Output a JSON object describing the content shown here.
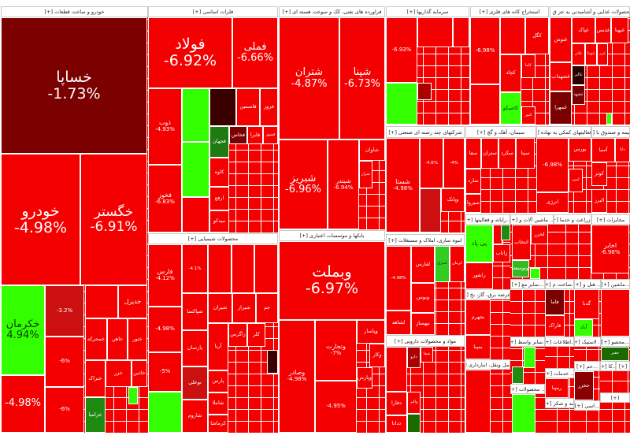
{
  "colors": {
    "red": "#f40000",
    "dark_red": "#cc1010",
    "maroon": "#7b0000",
    "very_dark": "#3a0000",
    "green": "#33ff00",
    "dark_green": "#1f8a10",
    "deep_green": "#1a6a00"
  },
  "sectors": [
    {
      "title": "خودرو و ساخت قطعات [+]",
      "tiles": [
        {
          "label": "خساپا",
          "pct": "-1.73%",
          "color": "#7b0000"
        },
        {
          "label": "خودرو",
          "pct": "-4.98%",
          "color": "#f40000"
        },
        {
          "label": "خگستر",
          "pct": "-6.91%",
          "color": "#f40000"
        },
        {
          "label": "خکرمان",
          "pct": "4.94%",
          "color": "#33ff00"
        },
        {
          "label": "",
          "pct": "-3.2%",
          "color": "#cc1010"
        },
        {
          "label": "",
          "pct": "-6%",
          "color": "#f40000"
        },
        {
          "label": "",
          "pct": "-4.98%",
          "color": "#f40000"
        },
        {
          "label": "",
          "pct": "-6%",
          "color": "#f40000"
        },
        {
          "label": "خدیزل",
          "pct": "",
          "color": "#f40000"
        },
        {
          "label": "",
          "pct": "",
          "color": "#f40000"
        },
        {
          "label": "خمحرکه",
          "pct": "",
          "color": "#f40000"
        },
        {
          "label": "خاهن",
          "pct": "",
          "color": "#f40000"
        },
        {
          "label": "ختور",
          "pct": "",
          "color": "#f40000"
        },
        {
          "label": "ختراک",
          "pct": "",
          "color": "#f40000"
        },
        {
          "label": "خزر",
          "pct": "",
          "color": "#f40000"
        },
        {
          "label": "خاذین",
          "pct": "",
          "color": "#f40000"
        },
        {
          "label": "خزامیا",
          "pct": "",
          "color": "#1f8a10"
        },
        {
          "label": "",
          "pct": "",
          "color": "#33ff00"
        }
      ]
    },
    {
      "title": "فلزات اساسی [+]",
      "tiles": [
        {
          "label": "فولاد",
          "pct": "-6.92%",
          "color": "#f40000"
        },
        {
          "label": "فملی",
          "pct": "-6.66%",
          "color": "#f40000"
        },
        {
          "label": "ذوب",
          "pct": "-4.93%",
          "color": "#f40000"
        },
        {
          "label": "فخوز",
          "pct": "-6.83%",
          "color": "#f40000"
        },
        {
          "label": "",
          "pct": "",
          "color": "#33ff00"
        },
        {
          "label": "",
          "pct": "",
          "color": "#33ff00"
        },
        {
          "label": "",
          "pct": "",
          "color": "#f40000"
        },
        {
          "label": "",
          "pct": "",
          "color": "#3a0000"
        },
        {
          "label": "قاسمین",
          "pct": "",
          "color": "#f40000"
        },
        {
          "label": "فروز",
          "pct": "",
          "color": "#f40000"
        },
        {
          "label": "فجهان",
          "pct": "",
          "color": "#1f7a12"
        },
        {
          "label": "فخاس",
          "pct": "",
          "color": "#7b0000"
        },
        {
          "label": "فایرا",
          "pct": "",
          "color": "#f40000"
        },
        {
          "label": "فسوز",
          "pct": "",
          "color": "#f40000"
        },
        {
          "label": "کاوه",
          "pct": "",
          "color": "#f40000"
        },
        {
          "label": "ارفع",
          "pct": "",
          "color": "#f40000"
        },
        {
          "label": "میدکو",
          "pct": "",
          "color": "#f40000"
        }
      ]
    },
    {
      "title": "محصولات شیمیایی [+]",
      "tiles": [
        {
          "label": "فارس",
          "pct": "-4.12%",
          "color": "#f40000"
        },
        {
          "label": "",
          "pct": "-4.98%",
          "color": "#f40000"
        },
        {
          "label": "",
          "pct": "-5%",
          "color": "#f40000"
        },
        {
          "label": "",
          "pct": "",
          "color": "#33ff00"
        },
        {
          "label": "",
          "pct": "-4.1%",
          "color": "#f40000"
        },
        {
          "label": "",
          "pct": "",
          "color": "#f40000"
        },
        {
          "label": "",
          "pct": "",
          "color": "#f40000"
        },
        {
          "label": "",
          "pct": "",
          "color": "#f40000"
        },
        {
          "label": "شپاکسا",
          "pct": "",
          "color": "#f40000"
        },
        {
          "label": "شیران",
          "pct": "",
          "color": "#f40000"
        },
        {
          "label": "شیراز",
          "pct": "",
          "color": "#f40000"
        },
        {
          "label": "جم",
          "pct": "",
          "color": "#f40000"
        },
        {
          "label": "پارسان",
          "pct": "",
          "color": "#f40000"
        },
        {
          "label": "نوعلی",
          "pct": "",
          "color": "#cc1010"
        },
        {
          "label": "شاروم",
          "pct": "",
          "color": "#f40000"
        },
        {
          "label": "آریا",
          "pct": "",
          "color": "#f40000"
        },
        {
          "label": "زاگرس",
          "pct": "",
          "color": "#f40000"
        },
        {
          "label": "کلر",
          "pct": "",
          "color": "#f40000"
        },
        {
          "label": "",
          "pct": "",
          "color": "#3a0000"
        },
        {
          "label": "پارس",
          "pct": "",
          "color": "#f40000"
        },
        {
          "label": "شاملا",
          "pct": "",
          "color": "#f40000"
        },
        {
          "label": "کرماشا",
          "pct": "",
          "color": "#f40000"
        }
      ]
    },
    {
      "title": "فراورده های نفتی، کک و سوخت هسته ای [+]",
      "tiles": [
        {
          "label": "شتران",
          "pct": "-4.87%",
          "color": "#f40000"
        },
        {
          "label": "شپنا",
          "pct": "-6.73%",
          "color": "#f40000"
        },
        {
          "label": "شبریز",
          "pct": "-6.96%",
          "color": "#f40000"
        },
        {
          "label": "شبندر",
          "pct": "-6.94%",
          "color": "#f40000"
        },
        {
          "label": "شاوان",
          "pct": "",
          "color": "#f40000"
        },
        {
          "label": "شراز",
          "pct": "",
          "color": "#f40000"
        }
      ]
    },
    {
      "title": "بانکها و موسسات اعتباری [+]",
      "tiles": [
        {
          "label": "وبملت",
          "pct": "-6.97%",
          "color": "#f40000"
        },
        {
          "label": "وصادر",
          "pct": "-4.98%",
          "color": "#f40000"
        },
        {
          "label": "وتجارت",
          "pct": "-7%",
          "color": "#f40000"
        },
        {
          "label": "",
          "pct": "-4.95%",
          "color": "#f40000"
        },
        {
          "label": "وپاسار",
          "pct": "",
          "color": "#f40000"
        },
        {
          "label": "وکار",
          "pct": "",
          "color": "#f40000"
        },
        {
          "label": "وپارس",
          "pct": "",
          "color": "#f40000"
        }
      ]
    },
    {
      "title": "سرمایه گذاریها [+]",
      "tiles": [
        {
          "label": "",
          "pct": "-6.93%",
          "color": "#f40000"
        },
        {
          "label": "",
          "pct": "",
          "color": "#33ff00"
        },
        {
          "label": "",
          "pct": "",
          "color": "#f40000"
        },
        {
          "label": "",
          "pct": "",
          "color": "#f40000"
        },
        {
          "label": "",
          "pct": "",
          "color": "#aa0000"
        }
      ]
    },
    {
      "title": "استخراج کانه های فلزی [+]",
      "tiles": [
        {
          "label": "",
          "pct": "-6.98%",
          "color": "#f40000"
        },
        {
          "label": "",
          "pct": "",
          "color": "#f40000"
        },
        {
          "label": "",
          "pct": "",
          "color": "#f40000"
        },
        {
          "label": "کگل",
          "pct": "",
          "color": "#f40000"
        },
        {
          "label": "کچاد",
          "pct": "",
          "color": "#f40000"
        },
        {
          "label": "کاما",
          "pct": "",
          "color": "#f40000"
        },
        {
          "label": "کاصیکو",
          "pct": "",
          "color": "#33ff00"
        },
        {
          "label": "کنور",
          "pct": "",
          "color": "#f40000"
        }
      ]
    },
    {
      "title": "...محصولات غذایی و آشامیدنی به جز ق [+]",
      "tiles": [
        {
          "label": "غنوش",
          "pct": "",
          "color": "#f40000"
        },
        {
          "label": "غپاک",
          "pct": "",
          "color": "#f40000"
        },
        {
          "label": "غدیس",
          "pct": "",
          "color": "#f40000"
        },
        {
          "label": "غبهنا",
          "pct": "",
          "color": "#f40000"
        },
        {
          "label": "غاذر",
          "pct": "",
          "color": "#f40000"
        },
        {
          "label": "غویتا",
          "pct": "",
          "color": "#f40000"
        },
        {
          "label": "غزر",
          "pct": "",
          "color": "#f40000"
        },
        {
          "label": "غشهداب",
          "pct": "",
          "color": "#f40000"
        },
        {
          "label": "غمهرا",
          "pct": "",
          "color": "#7b0000"
        },
        {
          "label": "غالبر",
          "pct": "",
          "color": "#2a0000"
        },
        {
          "label": "غشهد",
          "pct": "",
          "color": "#7b0000"
        },
        {
          "label": "",
          "pct": "",
          "color": "#33ff00"
        }
      ]
    },
    {
      "title": "شرکتهای چند رشته ای صنعتی [+]",
      "tiles": [
        {
          "label": "شستا",
          "pct": "-4.98%",
          "color": "#f40000"
        },
        {
          "label": "",
          "pct": "-4.6%",
          "color": "#f40000"
        },
        {
          "label": "",
          "pct": "-4%",
          "color": "#f40000"
        },
        {
          "label": "",
          "pct": "",
          "color": "#cc1010"
        },
        {
          "label": "وپانک",
          "pct": "",
          "color": "#f40000"
        }
      ]
    },
    {
      "title": "سیمان، آهک و گچ [+]",
      "tiles": [
        {
          "label": "سفا",
          "pct": "",
          "color": "#f40000"
        },
        {
          "label": "ستران",
          "pct": "",
          "color": "#f40000"
        },
        {
          "label": "سکرد",
          "pct": "",
          "color": "#f40000"
        },
        {
          "label": "سپتا",
          "pct": "",
          "color": "#f40000"
        },
        {
          "label": "سارد",
          "pct": "",
          "color": "#f40000"
        },
        {
          "label": "سیروا",
          "pct": "",
          "color": "#f40000"
        }
      ]
    },
    {
      "title": "...فعالیتهای کمکی به نهاده [+]",
      "tiles": [
        {
          "label": "",
          "pct": "-6.98%",
          "color": "#f40000"
        },
        {
          "label": "بورس",
          "pct": "",
          "color": "#f40000"
        },
        {
          "label": "امین",
          "pct": "",
          "color": "#f40000"
        },
        {
          "label": "انرژی",
          "pct": "",
          "color": "#f40000"
        }
      ]
    },
    {
      "title": "...بیمه و صندوق با [+]",
      "tiles": [
        {
          "label": "آسیا",
          "pct": "",
          "color": "#f40000"
        },
        {
          "label": "دانا",
          "pct": "",
          "color": "#f40000"
        },
        {
          "label": "کوثر",
          "pct": "",
          "color": "#f40000"
        },
        {
          "label": "البرز",
          "pct": "",
          "color": "#f40000"
        }
      ]
    },
    {
      "title": "انبوه سازی، املاک و مستغلات [+]",
      "tiles": [
        {
          "label": "",
          "pct": "-4.98%",
          "color": "#f40000"
        },
        {
          "label": "لفارس",
          "pct": "",
          "color": "#f40000"
        },
        {
          "label": "لشرق",
          "pct": "",
          "color": "#33cc22"
        },
        {
          "label": "کرمان",
          "pct": "",
          "color": "#f40000"
        },
        {
          "label": "ونوس",
          "pct": "",
          "color": "#f40000"
        },
        {
          "label": "نیهساز",
          "pct": "",
          "color": "#f40000"
        },
        {
          "label": "لشاهد",
          "pct": "",
          "color": "#f40000"
        }
      ]
    },
    {
      "title": "مواد و محصولات دارویی [+]",
      "tiles": [
        {
          "label": "",
          "pct": "",
          "color": "#f40000"
        },
        {
          "label": "دارو",
          "pct": "",
          "color": "#aa0000"
        },
        {
          "label": "شفا",
          "pct": "",
          "color": "#f40000"
        },
        {
          "label": "والبر",
          "pct": "",
          "color": "#f40000"
        },
        {
          "label": "",
          "pct": "",
          "color": "#1a6a00"
        },
        {
          "label": "دفارا",
          "pct": "",
          "color": "#f40000"
        },
        {
          "label": "ددانا",
          "pct": "",
          "color": "#f40000"
        }
      ]
    },
    {
      "title": "...رایانه و فعالیتها [+]",
      "tiles": [
        {
          "label": "پی پاد",
          "pct": "",
          "color": "#33ff00"
        },
        {
          "label": "",
          "pct": "",
          "color": "#f40000"
        },
        {
          "label": "",
          "pct": "",
          "color": "#1f8a10"
        },
        {
          "label": "زاتاب",
          "pct": "",
          "color": "#f40000"
        },
        {
          "label": "رانفور",
          "pct": "",
          "color": "#f40000"
        }
      ]
    },
    {
      "title": "... ماشین آلات و [+]",
      "tiles": [
        {
          "label": "انتخاب",
          "pct": "",
          "color": "#f40000"
        },
        {
          "label": "لخزر",
          "pct": "",
          "color": "#f40000"
        },
        {
          "label": "وتوسعه",
          "pct": "",
          "color": "#33bb22"
        },
        {
          "label": "",
          "pct": "",
          "color": "#33ff00"
        }
      ]
    },
    {
      "title": "...زراعت و خدما [+]",
      "tiles": []
    },
    {
      "title": "مخابرات [+]",
      "tiles": [
        {
          "label": "اخابر",
          "pct": "-6.98%",
          "color": "#f40000"
        }
      ]
    },
    {
      "title": "...عرضه برق، گاز، بخ [+]",
      "tiles": [
        {
          "label": "بجهرم",
          "pct": "",
          "color": "#f40000"
        },
        {
          "label": "بمپنا",
          "pct": "",
          "color": "#f40000"
        }
      ]
    },
    {
      "title": "...حمل ونقل، انبارداری [+]",
      "tiles": [
        {
          "label": "",
          "pct": "",
          "color": "#f40000"
        }
      ]
    },
    {
      "title": "...سایر مع [+]",
      "tiles": []
    },
    {
      "title": "...ساخت م [+]",
      "tiles": [
        {
          "label": "فاما",
          "pct": "",
          "color": "#7b0000"
        },
        {
          "label": "فاراک",
          "pct": "",
          "color": "#f40000"
        }
      ]
    },
    {
      "title": "... هتل و [+]",
      "tiles": [
        {
          "label": "گدنا",
          "pct": "",
          "color": "#f40000"
        },
        {
          "label": "آباد",
          "pct": "",
          "color": "#33ff00"
        }
      ]
    },
    {
      "title": "...ماشین [+]",
      "tiles": [
        {
          "label": "",
          "pct": "",
          "color": "#f40000"
        }
      ]
    },
    {
      "title": "...سایر واسط [+]",
      "tiles": [
        {
          "label": "",
          "pct": "",
          "color": "#33ff00"
        },
        {
          "label": "",
          "pct": "",
          "color": "#1f8a10"
        }
      ]
    },
    {
      "title": "...اطلاعات [+]",
      "tiles": []
    },
    {
      "title": "... لاستیک [+]",
      "tiles": []
    },
    {
      "title": "...محصو [+]",
      "tiles": [
        {
          "label": "جفبر",
          "pct": "",
          "color": "#1a6a00"
        }
      ]
    },
    {
      "title": "... محصولات [+]",
      "tiles": [
        {
          "label": "",
          "pct": "",
          "color": "#33ff00"
        }
      ]
    },
    {
      "title": "... خدمات [+]",
      "tiles": [
        {
          "label": "رمپنا",
          "pct": "",
          "color": "#f40000"
        }
      ]
    },
    {
      "title": "قند و شکر [+]",
      "tiles": []
    },
    {
      "title": "...حم [+]",
      "tiles": [
        {
          "label": "حخزر",
          "pct": "",
          "color": "#8a0000"
        }
      ]
    },
    {
      "title": "...کا [+]",
      "tiles": []
    },
    {
      "title": "...اسی [+]",
      "tiles": []
    },
    {
      "title": "[+]",
      "tiles": []
    },
    {
      "title": "[+]",
      "tiles": []
    }
  ]
}
